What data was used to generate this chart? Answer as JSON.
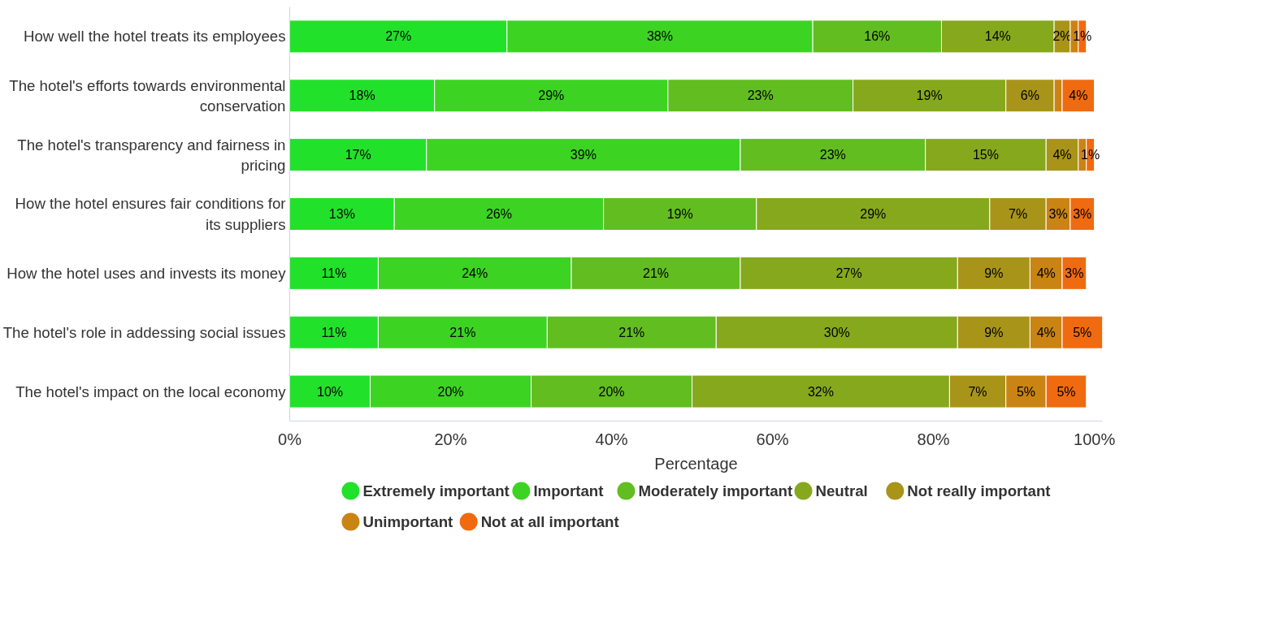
{
  "chart_data": {
    "type": "bar",
    "orientation": "horizontal",
    "stacked": true,
    "xlabel": "Percentage",
    "categories": [
      "How well the hotel treats its employees",
      "The hotel's efforts towards environmental conservation",
      "The hotel's transparency and fairness in pricing",
      "How the hotel ensures fair conditions for its suppliers",
      "How the hotel uses and invests its money",
      "The hotel's role in addessing social issues",
      "The hotel's impact on the local economy"
    ],
    "series": [
      {
        "name": "Extremely important",
        "color": "#22e12a",
        "values": [
          27,
          18,
          17,
          13,
          11,
          11,
          10
        ],
        "value_labels": [
          "27%",
          "18%",
          "17%",
          "13%",
          "11%",
          "11%",
          "10%"
        ]
      },
      {
        "name": "Important",
        "color": "#3dd323",
        "values": [
          38,
          29,
          39,
          26,
          24,
          21,
          20
        ],
        "value_labels": [
          "38%",
          "29%",
          "39%",
          "26%",
          "24%",
          "21%",
          "20%"
        ]
      },
      {
        "name": "Moderately important",
        "color": "#62bd20",
        "values": [
          16,
          23,
          23,
          19,
          21,
          21,
          20
        ],
        "value_labels": [
          "16%",
          "23%",
          "23%",
          "19%",
          "21%",
          "21%",
          "20%"
        ]
      },
      {
        "name": "Neutral",
        "color": "#86a81c",
        "values": [
          14,
          19,
          15,
          29,
          27,
          30,
          32
        ],
        "value_labels": [
          "14%",
          "19%",
          "15%",
          "29%",
          "27%",
          "30%",
          "32%"
        ]
      },
      {
        "name": "Not really important",
        "color": "#a89418",
        "values": [
          2,
          6,
          4,
          7,
          9,
          9,
          7
        ],
        "value_labels": [
          "2%",
          "6%",
          "4%",
          "7%",
          "9%",
          "9%",
          "7%"
        ]
      },
      {
        "name": "Unimportant",
        "color": "#c98414",
        "values": [
          1,
          1,
          1,
          3,
          4,
          4,
          5
        ],
        "value_labels": [
          null,
          null,
          null,
          "3%",
          "4%",
          "4%",
          "5%"
        ]
      },
      {
        "name": "Not at all important",
        "color": "#f06a10",
        "values": [
          1,
          4,
          1,
          3,
          3,
          5,
          5
        ],
        "value_labels": [
          "1%",
          "4%",
          "1%",
          "3%",
          "3%",
          "5%",
          "5%"
        ]
      }
    ],
    "xlim": [
      0,
      101
    ],
    "xticks": [
      {
        "value": 0,
        "label": "0%"
      },
      {
        "value": 20,
        "label": "20%"
      },
      {
        "value": 40,
        "label": "40%"
      },
      {
        "value": 60,
        "label": "60%"
      },
      {
        "value": 80,
        "label": "80%"
      },
      {
        "value": 100,
        "label": "100%"
      }
    ],
    "grid": false,
    "legend": "bottom"
  }
}
